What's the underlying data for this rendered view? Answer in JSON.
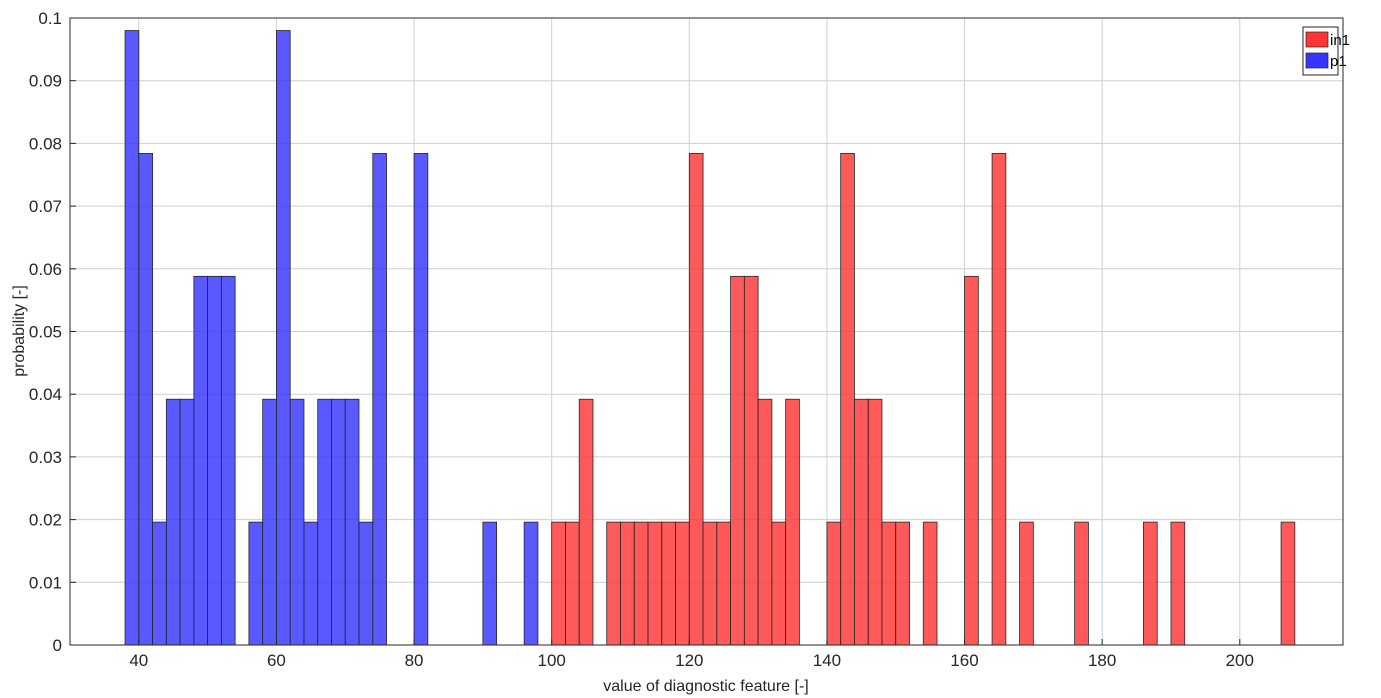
{
  "chart_data": {
    "type": "bar",
    "title": "",
    "xlabel": "value of diagnostic feature [-]",
    "ylabel": "probability [-]",
    "xlim": [
      30,
      215
    ],
    "ylim": [
      0,
      0.1
    ],
    "xticks": [
      "40",
      "60",
      "80",
      "100",
      "120",
      "140",
      "160",
      "180",
      "200"
    ],
    "yticks": [
      "0",
      "0.01",
      "0.02",
      "0.03",
      "0.04",
      "0.05",
      "0.06",
      "0.07",
      "0.08",
      "0.09",
      "0.1"
    ],
    "grid": true,
    "legend_position": "top-right",
    "bin_width": 2,
    "series": [
      {
        "name": "in1",
        "color": "#ff3535",
        "bins": [
          {
            "x": 101,
            "y": 0.0196
          },
          {
            "x": 103,
            "y": 0.0196
          },
          {
            "x": 105,
            "y": 0.0392
          },
          {
            "x": 109,
            "y": 0.0196
          },
          {
            "x": 111,
            "y": 0.0196
          },
          {
            "x": 113,
            "y": 0.0196
          },
          {
            "x": 115,
            "y": 0.0196
          },
          {
            "x": 117,
            "y": 0.0196
          },
          {
            "x": 119,
            "y": 0.0196
          },
          {
            "x": 121,
            "y": 0.0784
          },
          {
            "x": 123,
            "y": 0.0196
          },
          {
            "x": 125,
            "y": 0.0196
          },
          {
            "x": 127,
            "y": 0.0588
          },
          {
            "x": 129,
            "y": 0.0588
          },
          {
            "x": 131,
            "y": 0.0392
          },
          {
            "x": 133,
            "y": 0.0196
          },
          {
            "x": 135,
            "y": 0.0392
          },
          {
            "x": 141,
            "y": 0.0196
          },
          {
            "x": 143,
            "y": 0.0784
          },
          {
            "x": 145,
            "y": 0.0392
          },
          {
            "x": 147,
            "y": 0.0392
          },
          {
            "x": 149,
            "y": 0.0196
          },
          {
            "x": 151,
            "y": 0.0196
          },
          {
            "x": 155,
            "y": 0.0196
          },
          {
            "x": 161,
            "y": 0.0588
          },
          {
            "x": 165,
            "y": 0.0784
          },
          {
            "x": 169,
            "y": 0.0196
          },
          {
            "x": 177,
            "y": 0.0196
          },
          {
            "x": 187,
            "y": 0.0196
          },
          {
            "x": 191,
            "y": 0.0196
          },
          {
            "x": 207,
            "y": 0.0196
          }
        ]
      },
      {
        "name": "p1",
        "color": "#3535ff",
        "bins": [
          {
            "x": 39,
            "y": 0.098
          },
          {
            "x": 41,
            "y": 0.0784
          },
          {
            "x": 43,
            "y": 0.0196
          },
          {
            "x": 45,
            "y": 0.0392
          },
          {
            "x": 47,
            "y": 0.0392
          },
          {
            "x": 49,
            "y": 0.0588
          },
          {
            "x": 51,
            "y": 0.0588
          },
          {
            "x": 53,
            "y": 0.0588
          },
          {
            "x": 57,
            "y": 0.0196
          },
          {
            "x": 59,
            "y": 0.0392
          },
          {
            "x": 61,
            "y": 0.098
          },
          {
            "x": 63,
            "y": 0.0392
          },
          {
            "x": 65,
            "y": 0.0196
          },
          {
            "x": 67,
            "y": 0.0392
          },
          {
            "x": 69,
            "y": 0.0392
          },
          {
            "x": 71,
            "y": 0.0392
          },
          {
            "x": 73,
            "y": 0.0196
          },
          {
            "x": 75,
            "y": 0.0784
          },
          {
            "x": 81,
            "y": 0.0784
          },
          {
            "x": 91,
            "y": 0.0196
          },
          {
            "x": 97,
            "y": 0.0196
          }
        ]
      }
    ]
  }
}
